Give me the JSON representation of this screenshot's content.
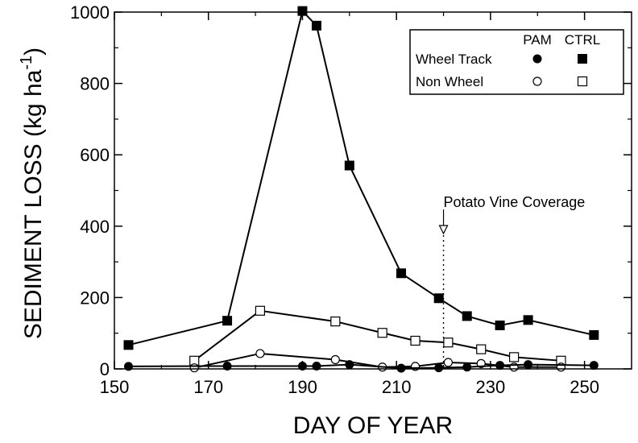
{
  "chart_data": {
    "type": "line",
    "title": "",
    "xlabel": "DAY OF YEAR",
    "ylabel_main": "SEDIMENT LOSS (kg ha",
    "ylabel_sup": "-1",
    "ylabel_close": ")",
    "xlim": [
      150,
      260
    ],
    "ylim": [
      0,
      1000
    ],
    "xticks": [
      150,
      170,
      190,
      210,
      230,
      250
    ],
    "yticks": [
      0,
      200,
      400,
      600,
      800,
      1000
    ],
    "legend": {
      "position": "top-right",
      "col_headers": [
        "PAM",
        "CTRL"
      ],
      "rows": [
        "Wheel Track",
        "Non Wheel"
      ]
    },
    "annotation": {
      "text": "Potato Vine Coverage",
      "x": 220
    },
    "series": [
      {
        "name": "Wheel Track CTRL",
        "marker": "filled-square",
        "x": [
          153,
          174,
          190,
          193,
          200,
          211,
          219,
          225,
          232,
          238,
          252
        ],
        "y": [
          67,
          135,
          1003,
          962,
          570,
          268,
          198,
          148,
          122,
          137,
          95
        ]
      },
      {
        "name": "Non Wheel CTRL",
        "marker": "open-square",
        "x": [
          167,
          181,
          197,
          207,
          214,
          221,
          228,
          235,
          245
        ],
        "y": [
          23,
          163,
          133,
          101,
          79,
          74,
          55,
          33,
          23
        ]
      },
      {
        "name": "Non Wheel PAM",
        "marker": "open-circle",
        "x": [
          167,
          181,
          197,
          207,
          214,
          221,
          228,
          235,
          245
        ],
        "y": [
          3,
          43,
          26,
          5,
          7,
          18,
          15,
          5,
          5
        ]
      },
      {
        "name": "Wheel Track PAM",
        "marker": "filled-circle",
        "x": [
          153,
          174,
          190,
          193,
          200,
          211,
          219,
          225,
          232,
          238,
          252
        ],
        "y": [
          7,
          8,
          8,
          8,
          12,
          2,
          3,
          5,
          10,
          12,
          10
        ]
      }
    ]
  }
}
